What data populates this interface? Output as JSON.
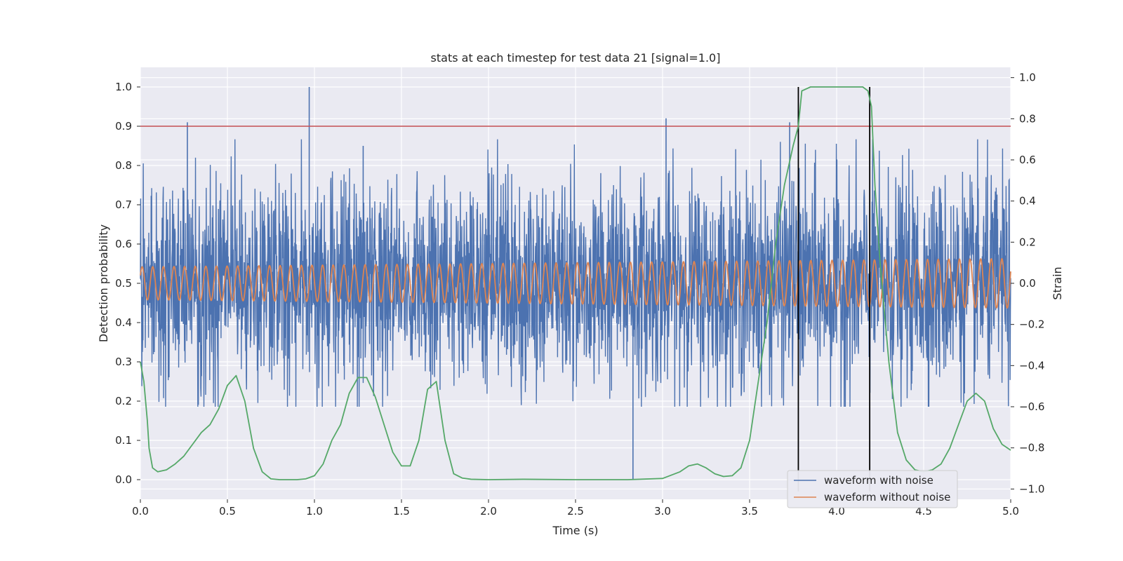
{
  "chart_data": {
    "type": "line",
    "title": "stats at each timestep for test data 21 [signal=1.0]",
    "xlabel": "Time (s)",
    "ylabel_left": "Detection probability",
    "ylabel_right": "Strain",
    "xlim": [
      0.0,
      5.0
    ],
    "ylim_left": [
      -0.05,
      1.05
    ],
    "ylim_right": [
      -1.05,
      1.05
    ],
    "x_ticks": [
      "0.0",
      "0.5",
      "1.0",
      "1.5",
      "2.0",
      "2.5",
      "3.0",
      "3.5",
      "4.0",
      "4.5",
      "5.0"
    ],
    "y_ticks_left": [
      "0.0",
      "0.1",
      "0.2",
      "0.3",
      "0.4",
      "0.5",
      "0.6",
      "0.7",
      "0.8",
      "0.9",
      "1.0"
    ],
    "y_ticks_right": [
      "−1.0",
      "−0.8",
      "−0.6",
      "−0.4",
      "−0.2",
      "0.0",
      "0.2",
      "0.4",
      "0.6",
      "0.8",
      "1.0"
    ],
    "grid": true,
    "legend_position": "bottom-right",
    "threshold": {
      "y": 0.9,
      "axis": "left",
      "color": "#c44e52"
    },
    "event_window": {
      "x_start": 3.78,
      "x_end": 4.19,
      "color": "#000000"
    },
    "series": [
      {
        "name": "waveform with noise",
        "axis": "right",
        "color": "#4c72b0",
        "kind": "noise",
        "approx_mean": 0.0,
        "approx_std": 0.25,
        "approx_peak": 1.0,
        "approx_trough": -0.95
      },
      {
        "name": "waveform without noise",
        "axis": "right",
        "color": "#dd8452",
        "kind": "sinusoid",
        "cycles": 82,
        "amplitude_start": 0.08,
        "amplitude_end": 0.12
      },
      {
        "axis": "left",
        "color": "#55a868",
        "kind": "probability",
        "x": [
          0.0,
          0.02,
          0.04,
          0.05,
          0.07,
          0.1,
          0.15,
          0.2,
          0.25,
          0.3,
          0.35,
          0.4,
          0.45,
          0.5,
          0.55,
          0.6,
          0.65,
          0.7,
          0.75,
          0.8,
          0.9,
          0.95,
          1.0,
          1.05,
          1.1,
          1.15,
          1.2,
          1.25,
          1.3,
          1.35,
          1.4,
          1.45,
          1.5,
          1.55,
          1.6,
          1.65,
          1.7,
          1.75,
          1.8,
          1.85,
          1.9,
          2.0,
          2.2,
          2.5,
          2.8,
          3.0,
          3.1,
          3.15,
          3.2,
          3.25,
          3.3,
          3.35,
          3.4,
          3.45,
          3.5,
          3.55,
          3.6,
          3.65,
          3.7,
          3.75,
          3.78,
          3.8,
          3.85,
          3.9,
          4.0,
          4.1,
          4.15,
          4.18,
          4.2,
          4.22,
          4.25,
          4.3,
          4.35,
          4.4,
          4.45,
          4.5,
          4.55,
          4.6,
          4.65,
          4.7,
          4.75,
          4.8,
          4.85,
          4.9,
          4.95,
          5.0
        ],
        "values": [
          0.3,
          0.25,
          0.15,
          0.08,
          0.03,
          0.02,
          0.025,
          0.04,
          0.06,
          0.09,
          0.12,
          0.14,
          0.18,
          0.24,
          0.265,
          0.2,
          0.08,
          0.02,
          0.002,
          0.0,
          0.0,
          0.002,
          0.01,
          0.04,
          0.1,
          0.14,
          0.22,
          0.26,
          0.26,
          0.21,
          0.14,
          0.07,
          0.035,
          0.035,
          0.1,
          0.23,
          0.25,
          0.1,
          0.015,
          0.004,
          0.001,
          0.0,
          0.001,
          0.0,
          0.0,
          0.003,
          0.02,
          0.035,
          0.04,
          0.03,
          0.015,
          0.008,
          0.01,
          0.03,
          0.1,
          0.25,
          0.4,
          0.6,
          0.75,
          0.85,
          0.9,
          0.99,
          1.0,
          1.0,
          1.0,
          1.0,
          1.0,
          0.99,
          0.95,
          0.75,
          0.55,
          0.3,
          0.12,
          0.05,
          0.025,
          0.02,
          0.025,
          0.04,
          0.08,
          0.14,
          0.2,
          0.22,
          0.2,
          0.13,
          0.09,
          0.075
        ]
      },
      {
        "axis": "left",
        "color": "#4c72b0",
        "kind": "spikes",
        "x": [
          0.27,
          0.97,
          1.28,
          2.83,
          3.02,
          3.73
        ],
        "values": [
          0.91,
          1.0,
          0.85,
          0.0,
          0.92,
          0.91
        ]
      }
    ]
  }
}
